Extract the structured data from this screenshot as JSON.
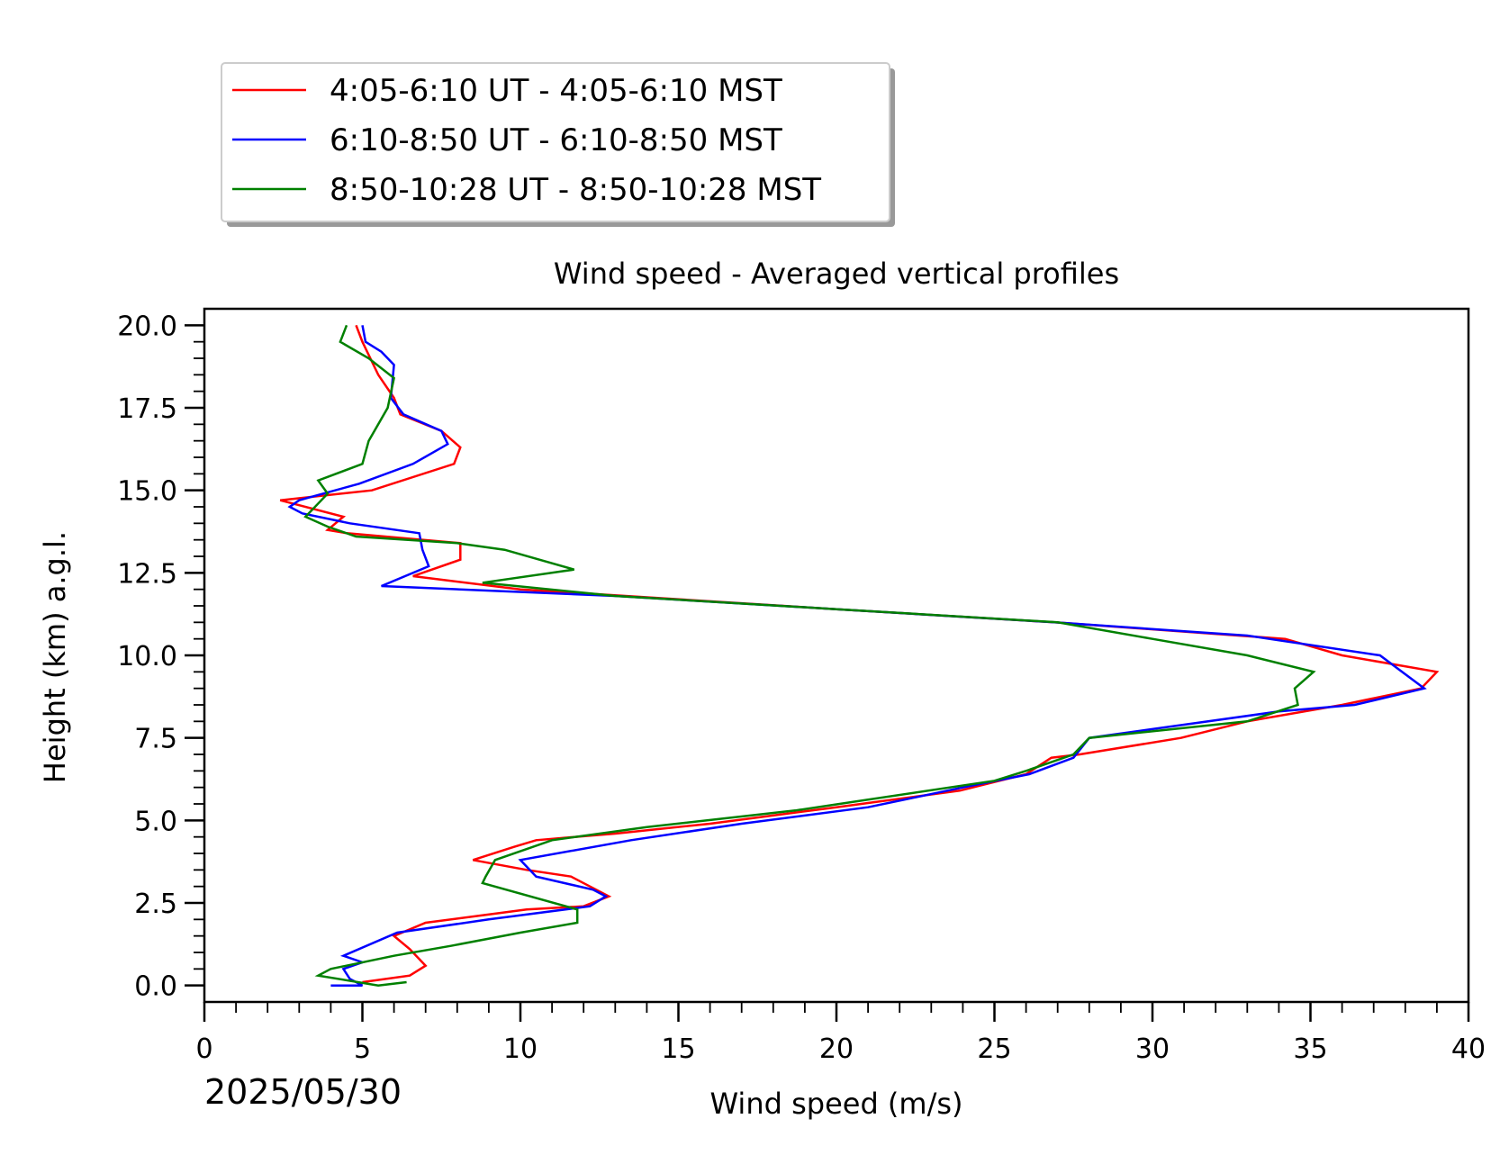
{
  "chart_data": {
    "type": "line",
    "title": "Wind speed - Averaged vertical profiles",
    "xlabel": "Wind speed (m/s)",
    "ylabel": "Height (km) a.g.l.",
    "date_label": "2025/05/30",
    "xlim": [
      0,
      40
    ],
    "ylim": [
      -0.5,
      20.5
    ],
    "x_ticks": [
      "0",
      "5",
      "10",
      "15",
      "20",
      "25",
      "30",
      "35",
      "40"
    ],
    "y_ticks": [
      "0.0",
      "2.5",
      "5.0",
      "7.5",
      "10.0",
      "12.5",
      "15.0",
      "17.5",
      "20.0"
    ],
    "legend_position": "above-left",
    "grid": false,
    "series": [
      {
        "name": "4:05-6:10 UT - 4:05-6:10 MST",
        "color": "#ff0000",
        "points": [
          [
            4.8,
            20.0
          ],
          [
            5.0,
            19.5
          ],
          [
            5.5,
            18.5
          ],
          [
            6.0,
            17.8
          ],
          [
            6.2,
            17.3
          ],
          [
            7.5,
            16.8
          ],
          [
            8.1,
            16.3
          ],
          [
            7.9,
            15.8
          ],
          [
            5.3,
            15.0
          ],
          [
            2.4,
            14.7
          ],
          [
            4.4,
            14.2
          ],
          [
            3.9,
            13.8
          ],
          [
            4.5,
            13.7
          ],
          [
            8.1,
            13.4
          ],
          [
            8.1,
            12.9
          ],
          [
            6.6,
            12.4
          ],
          [
            10.0,
            12.0
          ],
          [
            20.0,
            11.4
          ],
          [
            26.9,
            11.0
          ],
          [
            34.2,
            10.5
          ],
          [
            36.0,
            10.0
          ],
          [
            39.0,
            9.5
          ],
          [
            38.5,
            9.0
          ],
          [
            36.0,
            8.5
          ],
          [
            33.0,
            8.0
          ],
          [
            30.9,
            7.5
          ],
          [
            27.7,
            7.0
          ],
          [
            26.8,
            6.9
          ],
          [
            26.0,
            6.4
          ],
          [
            23.9,
            5.9
          ],
          [
            20.0,
            5.4
          ],
          [
            16.0,
            4.9
          ],
          [
            13.0,
            4.6
          ],
          [
            10.5,
            4.4
          ],
          [
            9.8,
            4.2
          ],
          [
            8.5,
            3.8
          ],
          [
            10.2,
            3.5
          ],
          [
            11.6,
            3.3
          ],
          [
            12.8,
            2.7
          ],
          [
            12.0,
            2.4
          ],
          [
            10.2,
            2.3
          ],
          [
            7.0,
            1.9
          ],
          [
            6.0,
            1.5
          ],
          [
            6.5,
            1.1
          ],
          [
            7.0,
            0.6
          ],
          [
            6.5,
            0.3
          ],
          [
            5.0,
            0.1
          ]
        ]
      },
      {
        "name": "6:10-8:50 UT - 6:10-8:50 MST",
        "color": "#0000ff",
        "points": [
          [
            5.0,
            20.0
          ],
          [
            5.1,
            19.5
          ],
          [
            5.6,
            19.2
          ],
          [
            6.0,
            18.8
          ],
          [
            5.9,
            17.8
          ],
          [
            6.3,
            17.3
          ],
          [
            7.5,
            16.8
          ],
          [
            7.7,
            16.4
          ],
          [
            6.6,
            15.8
          ],
          [
            4.9,
            15.2
          ],
          [
            3.0,
            14.7
          ],
          [
            2.7,
            14.5
          ],
          [
            3.1,
            14.3
          ],
          [
            4.6,
            14.0
          ],
          [
            6.8,
            13.7
          ],
          [
            6.9,
            13.2
          ],
          [
            7.1,
            12.7
          ],
          [
            5.6,
            12.1
          ],
          [
            13.0,
            11.8
          ],
          [
            20.0,
            11.4
          ],
          [
            26.9,
            11.0
          ],
          [
            33.0,
            10.6
          ],
          [
            37.2,
            10.0
          ],
          [
            38.6,
            9.0
          ],
          [
            36.4,
            8.5
          ],
          [
            34.0,
            8.3
          ],
          [
            31.0,
            7.9
          ],
          [
            28.0,
            7.5
          ],
          [
            27.5,
            6.9
          ],
          [
            26.1,
            6.4
          ],
          [
            24.0,
            6.0
          ],
          [
            21.0,
            5.4
          ],
          [
            17.0,
            4.9
          ],
          [
            13.5,
            4.4
          ],
          [
            10.0,
            3.8
          ],
          [
            10.5,
            3.3
          ],
          [
            12.3,
            2.9
          ],
          [
            12.7,
            2.7
          ],
          [
            12.2,
            2.4
          ],
          [
            9.0,
            2.0
          ],
          [
            6.1,
            1.6
          ],
          [
            4.4,
            0.9
          ],
          [
            5.0,
            0.7
          ],
          [
            4.4,
            0.5
          ],
          [
            4.6,
            0.2
          ],
          [
            5.0,
            0.0
          ],
          [
            4.0,
            0.0
          ]
        ]
      },
      {
        "name": "8:50-10:28 UT - 8:50-10:28 MST",
        "color": "#008000",
        "points": [
          [
            4.5,
            20.0
          ],
          [
            4.3,
            19.5
          ],
          [
            5.2,
            19.0
          ],
          [
            6.0,
            18.4
          ],
          [
            5.8,
            17.5
          ],
          [
            5.2,
            16.5
          ],
          [
            5.0,
            15.8
          ],
          [
            3.6,
            15.3
          ],
          [
            3.9,
            14.9
          ],
          [
            3.7,
            14.7
          ],
          [
            3.2,
            14.2
          ],
          [
            3.9,
            13.9
          ],
          [
            4.8,
            13.6
          ],
          [
            8.0,
            13.4
          ],
          [
            9.5,
            13.2
          ],
          [
            11.7,
            12.6
          ],
          [
            8.8,
            12.2
          ],
          [
            13.0,
            11.8
          ],
          [
            20.0,
            11.4
          ],
          [
            27.0,
            11.0
          ],
          [
            30.0,
            10.5
          ],
          [
            33.0,
            10.0
          ],
          [
            35.1,
            9.5
          ],
          [
            34.5,
            9.0
          ],
          [
            34.6,
            8.5
          ],
          [
            33.0,
            8.0
          ],
          [
            28.0,
            7.5
          ],
          [
            27.5,
            7.0
          ],
          [
            26.0,
            6.5
          ],
          [
            25.0,
            6.2
          ],
          [
            18.7,
            5.3
          ],
          [
            14.0,
            4.8
          ],
          [
            11.0,
            4.4
          ],
          [
            9.2,
            3.8
          ],
          [
            8.9,
            3.3
          ],
          [
            8.8,
            3.1
          ],
          [
            11.8,
            2.3
          ],
          [
            11.8,
            1.9
          ],
          [
            10.0,
            1.6
          ],
          [
            7.8,
            1.2
          ],
          [
            6.0,
            0.9
          ],
          [
            4.0,
            0.5
          ],
          [
            3.6,
            0.3
          ],
          [
            5.5,
            0.0
          ],
          [
            6.4,
            0.1
          ]
        ]
      }
    ]
  }
}
